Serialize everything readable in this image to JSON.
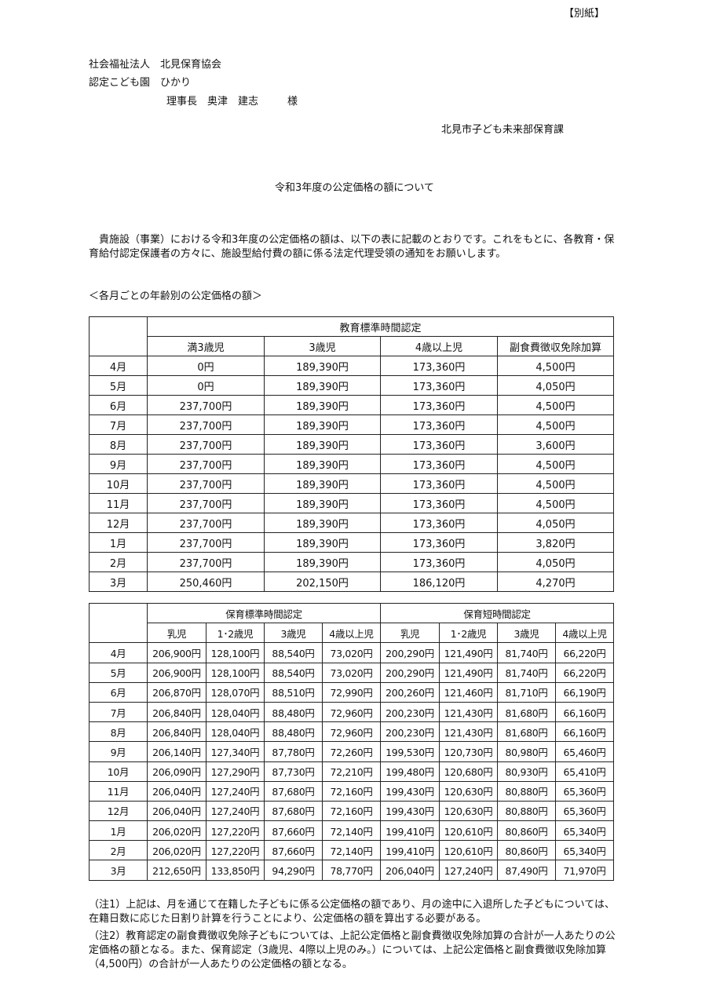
{
  "attachment_label": "【別紙】",
  "recipient": {
    "org": "社会福祉法人　北見保育協会",
    "facility": "認定こども園　ひかり",
    "person": "理事長　奥津　建志",
    "honorific": "様"
  },
  "sender": "北見市子ども未来部保育課",
  "title": "令和3年度の公定価格の額について",
  "body": "貴施設（事業）における令和3年度の公定価格の額は、以下の表に記載のとおりです。これをもとに、各教育・保育給付認定保護者の方々に、施設型給付費の額に係る法定代理受領の通知をお願いします。",
  "section_heading": "＜各月ごとの年齢別の公定価格の額＞",
  "table_education": {
    "group_header": "教育標準時間認定",
    "columns": [
      "満3歳児",
      "3歳児",
      "4歳以上児",
      "副食費徴収免除加算"
    ],
    "rows": [
      {
        "month": "4月",
        "values": [
          "0円",
          "189,390円",
          "173,360円",
          "4,500円"
        ]
      },
      {
        "month": "5月",
        "values": [
          "0円",
          "189,390円",
          "173,360円",
          "4,050円"
        ]
      },
      {
        "month": "6月",
        "values": [
          "237,700円",
          "189,390円",
          "173,360円",
          "4,500円"
        ]
      },
      {
        "month": "7月",
        "values": [
          "237,700円",
          "189,390円",
          "173,360円",
          "4,500円"
        ]
      },
      {
        "month": "8月",
        "values": [
          "237,700円",
          "189,390円",
          "173,360円",
          "3,600円"
        ]
      },
      {
        "month": "9月",
        "values": [
          "237,700円",
          "189,390円",
          "173,360円",
          "4,500円"
        ]
      },
      {
        "month": "10月",
        "values": [
          "237,700円",
          "189,390円",
          "173,360円",
          "4,500円"
        ]
      },
      {
        "month": "11月",
        "values": [
          "237,700円",
          "189,390円",
          "173,360円",
          "4,500円"
        ]
      },
      {
        "month": "12月",
        "values": [
          "237,700円",
          "189,390円",
          "173,360円",
          "4,050円"
        ]
      },
      {
        "month": "1月",
        "values": [
          "237,700円",
          "189,390円",
          "173,360円",
          "3,820円"
        ]
      },
      {
        "month": "2月",
        "values": [
          "237,700円",
          "189,390円",
          "173,360円",
          "4,050円"
        ]
      },
      {
        "month": "3月",
        "values": [
          "250,460円",
          "202,150円",
          "186,120円",
          "4,270円"
        ]
      }
    ]
  },
  "table_childcare": {
    "group_headers": [
      "保育標準時間認定",
      "保育短時間認定"
    ],
    "columns": [
      "乳児",
      "1･2歳児",
      "3歳児",
      "4歳以上児",
      "乳児",
      "1･2歳児",
      "3歳児",
      "4歳以上児"
    ],
    "rows": [
      {
        "month": "4月",
        "values": [
          "206,900円",
          "128,100円",
          "88,540円",
          "73,020円",
          "200,290円",
          "121,490円",
          "81,740円",
          "66,220円"
        ]
      },
      {
        "month": "5月",
        "values": [
          "206,900円",
          "128,100円",
          "88,540円",
          "73,020円",
          "200,290円",
          "121,490円",
          "81,740円",
          "66,220円"
        ]
      },
      {
        "month": "6月",
        "values": [
          "206,870円",
          "128,070円",
          "88,510円",
          "72,990円",
          "200,260円",
          "121,460円",
          "81,710円",
          "66,190円"
        ]
      },
      {
        "month": "7月",
        "values": [
          "206,840円",
          "128,040円",
          "88,480円",
          "72,960円",
          "200,230円",
          "121,430円",
          "81,680円",
          "66,160円"
        ]
      },
      {
        "month": "8月",
        "values": [
          "206,840円",
          "128,040円",
          "88,480円",
          "72,960円",
          "200,230円",
          "121,430円",
          "81,680円",
          "66,160円"
        ]
      },
      {
        "month": "9月",
        "values": [
          "206,140円",
          "127,340円",
          "87,780円",
          "72,260円",
          "199,530円",
          "120,730円",
          "80,980円",
          "65,460円"
        ]
      },
      {
        "month": "10月",
        "values": [
          "206,090円",
          "127,290円",
          "87,730円",
          "72,210円",
          "199,480円",
          "120,680円",
          "80,930円",
          "65,410円"
        ]
      },
      {
        "month": "11月",
        "values": [
          "206,040円",
          "127,240円",
          "87,680円",
          "72,160円",
          "199,430円",
          "120,630円",
          "80,880円",
          "65,360円"
        ]
      },
      {
        "month": "12月",
        "values": [
          "206,040円",
          "127,240円",
          "87,680円",
          "72,160円",
          "199,430円",
          "120,630円",
          "80,880円",
          "65,360円"
        ]
      },
      {
        "month": "1月",
        "values": [
          "206,020円",
          "127,220円",
          "87,660円",
          "72,140円",
          "199,410円",
          "120,610円",
          "80,860円",
          "65,340円"
        ]
      },
      {
        "month": "2月",
        "values": [
          "206,020円",
          "127,220円",
          "87,660円",
          "72,140円",
          "199,410円",
          "120,610円",
          "80,860円",
          "65,340円"
        ]
      },
      {
        "month": "3月",
        "values": [
          "212,650円",
          "133,850円",
          "94,290円",
          "78,770円",
          "206,040円",
          "127,240円",
          "87,490円",
          "71,970円"
        ]
      }
    ]
  },
  "notes": [
    "（注1）上記は、月を通じて在籍した子どもに係る公定価格の額であり、月の途中に入退所した子どもについては、在籍日数に応じた日割り計算を行うことにより、公定価格の額を算出する必要がある。",
    "（注2）教育認定の副食費徴収免除子どもについては、上記公定価格と副食費徴収免除加算の合計が一人あたりの公定価格の額となる。また、保育認定（3歳児、4際以上児のみ。）については、上記公定価格と副食費徴収免除加算（4,500円）の合計が一人あたりの公定価格の額となる。"
  ]
}
